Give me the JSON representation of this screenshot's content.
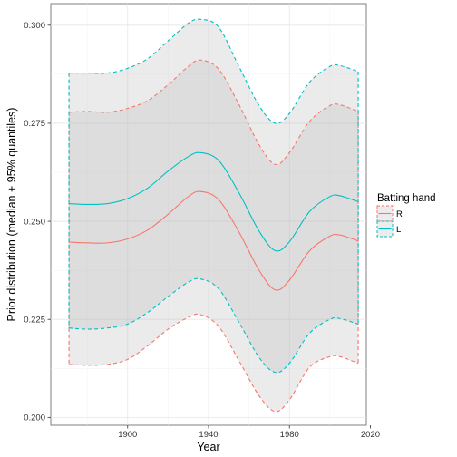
{
  "chart_data": {
    "type": "line",
    "xlabel": "Year",
    "ylabel": "Prior distribution (median + 95% quantiles)",
    "xlim": [
      1862,
      2018
    ],
    "ylim": [
      0.198,
      0.3055
    ],
    "xticks": [
      1900,
      1940,
      1980,
      2020
    ],
    "xtick_labels": [
      "1900",
      "1940",
      "1980",
      "2020"
    ],
    "yticks": [
      0.2,
      0.225,
      0.25,
      0.275,
      0.3
    ],
    "ytick_labels": [
      "0.200",
      "0.225",
      "0.250",
      "0.275",
      "0.300"
    ],
    "grid": true,
    "legend": {
      "title": "Batting hand",
      "position": "right",
      "entries": [
        "R",
        "L"
      ]
    },
    "series": [
      {
        "name": "R",
        "color": "#F8766D",
        "x": [
          1871,
          1880,
          1890,
          1900,
          1910,
          1920,
          1930,
          1936,
          1945,
          1955,
          1965,
          1973,
          1980,
          1990,
          2000,
          2005,
          2014
        ],
        "median": [
          0.2447,
          0.2445,
          0.2445,
          0.2455,
          0.2478,
          0.2518,
          0.2563,
          0.2576,
          0.2555,
          0.2473,
          0.2375,
          0.2325,
          0.235,
          0.2425,
          0.2462,
          0.2465,
          0.245
        ],
        "lower": [
          0.2135,
          0.2133,
          0.2135,
          0.2148,
          0.2183,
          0.2225,
          0.2255,
          0.2262,
          0.2232,
          0.2145,
          0.2055,
          0.2015,
          0.2045,
          0.2128,
          0.2155,
          0.2155,
          0.2138
        ],
        "upper": [
          0.2778,
          0.278,
          0.2778,
          0.2788,
          0.2808,
          0.2848,
          0.2895,
          0.2911,
          0.2888,
          0.2798,
          0.2695,
          0.2645,
          0.2675,
          0.2755,
          0.2795,
          0.2797,
          0.278
        ]
      },
      {
        "name": "L",
        "color": "#00BFC4",
        "x": [
          1871,
          1880,
          1890,
          1900,
          1910,
          1920,
          1930,
          1936,
          1945,
          1955,
          1965,
          1973,
          1980,
          1990,
          2000,
          2005,
          2014
        ],
        "median": [
          0.2545,
          0.2543,
          0.2545,
          0.2558,
          0.2585,
          0.2628,
          0.2665,
          0.2675,
          0.2655,
          0.2573,
          0.2475,
          0.2425,
          0.2448,
          0.2525,
          0.2563,
          0.2565,
          0.255
        ],
        "lower": [
          0.2228,
          0.2225,
          0.2228,
          0.2238,
          0.2268,
          0.2308,
          0.2345,
          0.2353,
          0.2328,
          0.2243,
          0.2153,
          0.2115,
          0.2138,
          0.2215,
          0.225,
          0.2252,
          0.2238
        ],
        "upper": [
          0.2878,
          0.2878,
          0.2878,
          0.289,
          0.2915,
          0.296,
          0.3005,
          0.3015,
          0.2995,
          0.2895,
          0.2795,
          0.275,
          0.2775,
          0.2855,
          0.2895,
          0.2897,
          0.2882
        ]
      }
    ]
  }
}
